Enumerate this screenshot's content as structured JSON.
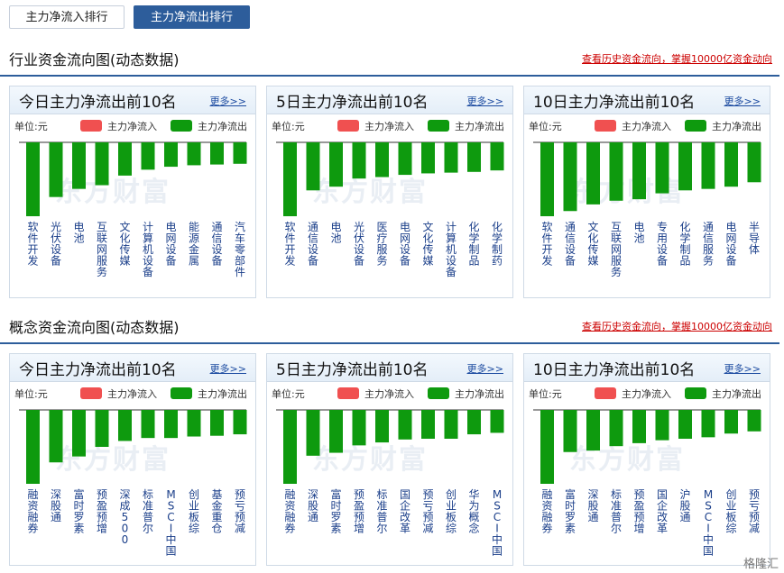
{
  "tabs": {
    "inflow": "主力净流入排行",
    "outflow": "主力净流出排行"
  },
  "sections": [
    {
      "title": "行业资金流向图(动态数据)",
      "link": "查看历史资金流向，掌握10000亿资金动向",
      "panels": [
        {
          "title": "今日主力净流出前10名",
          "more": "更多>>",
          "legend": {
            "unit": "单位:元",
            "inflow": "主力净流入",
            "outflow": "主力净流出"
          },
          "watermark": "东方财富",
          "chart_data": {
            "type": "bar",
            "series": [
              {
                "name": "主力净流出"
              }
            ],
            "categories": [
              "软件开发",
              "光伏设备",
              "电池",
              "互联网服务",
              "文化传媒",
              "计算机设备",
              "电网设备",
              "能源金属",
              "通信设备",
              "汽车零部件"
            ],
            "values": [
              -100,
              -74,
              -63,
              -58,
              -45,
              -37,
              -33,
              -31,
              -30,
              -29
            ]
          }
        },
        {
          "title": "5日主力净流出前10名",
          "more": "更多>>",
          "legend": {
            "unit": "单位:元",
            "inflow": "主力净流入",
            "outflow": "主力净流出"
          },
          "watermark": "东方财富",
          "chart_data": {
            "type": "bar",
            "series": [
              {
                "name": "主力净流出"
              }
            ],
            "categories": [
              "软件开发",
              "通信设备",
              "电池",
              "光伏设备",
              "医疗服务",
              "电网设备",
              "文化传媒",
              "计算机设备",
              "化学制品",
              "化学制药"
            ],
            "values": [
              -100,
              -65,
              -60,
              -49,
              -47,
              -44,
              -42,
              -41,
              -40,
              -38
            ]
          }
        },
        {
          "title": "10日主力净流出前10名",
          "more": "更多>>",
          "legend": {
            "unit": "单位:元",
            "inflow": "主力净流入",
            "outflow": "主力净流出"
          },
          "watermark": "东方财富",
          "chart_data": {
            "type": "bar",
            "series": [
              {
                "name": "主力净流出"
              }
            ],
            "categories": [
              "软件开发",
              "通信设备",
              "文化传媒",
              "互联网服务",
              "电池",
              "专用设备",
              "化学制品",
              "通信服务",
              "电网设备",
              "半导体"
            ],
            "values": [
              -100,
              -93,
              -84,
              -79,
              -77,
              -69,
              -65,
              -63,
              -60,
              -54
            ]
          }
        }
      ]
    },
    {
      "title": "概念资金流向图(动态数据)",
      "link": "查看历史资金流向，掌握10000亿资金动向",
      "panels": [
        {
          "title": "今日主力净流出前10名",
          "more": "更多>>",
          "legend": {
            "unit": "单位:元",
            "inflow": "主力净流入",
            "outflow": "主力净流出"
          },
          "watermark": "东方财富",
          "chart_data": {
            "type": "bar",
            "series": [
              {
                "name": "主力净流出"
              }
            ],
            "categories": [
              "融资融券",
              "深股通",
              "富时罗素",
              "预盈预增",
              "深成500",
              "标准普尔",
              "MSCI中国",
              "创业板综",
              "基金重仓",
              "预亏预减"
            ],
            "values": [
              -100,
              -71,
              -63,
              -50,
              -42,
              -38,
              -38,
              -36,
              -35,
              -33
            ]
          }
        },
        {
          "title": "5日主力净流出前10名",
          "more": "更多>>",
          "legend": {
            "unit": "单位:元",
            "inflow": "主力净流入",
            "outflow": "主力净流出"
          },
          "watermark": "东方财富",
          "chart_data": {
            "type": "bar",
            "series": [
              {
                "name": "主力净流出"
              }
            ],
            "categories": [
              "融资融券",
              "深股通",
              "富时罗素",
              "预盈预增",
              "标准普尔",
              "国企改革",
              "预亏预减",
              "创业板综",
              "华为概念",
              "MSCI中国"
            ],
            "values": [
              -100,
              -62,
              -58,
              -48,
              -44,
              -40,
              -39,
              -39,
              -33,
              -31
            ]
          }
        },
        {
          "title": "10日主力净流出前10名",
          "more": "更多>>",
          "legend": {
            "unit": "单位:元",
            "inflow": "主力净流入",
            "outflow": "主力净流出"
          },
          "watermark": "东方财富",
          "chart_data": {
            "type": "bar",
            "series": [
              {
                "name": "主力净流出"
              }
            ],
            "categories": [
              "融资融券",
              "富时罗素",
              "深股通",
              "标准普尔",
              "预盈预增",
              "国企改革",
              "沪股通",
              "MSCI中国",
              "创业板综",
              "预亏预减"
            ],
            "values": [
              -100,
              -57,
              -55,
              -49,
              -45,
              -41,
              -39,
              -37,
              -32,
              -29
            ]
          }
        }
      ]
    }
  ],
  "credit": "格隆汇",
  "colors": {
    "inflow": "#f05050",
    "outflow": "#0e9a0e",
    "accent": "#2d5d9b",
    "link": "#cc0000"
  }
}
